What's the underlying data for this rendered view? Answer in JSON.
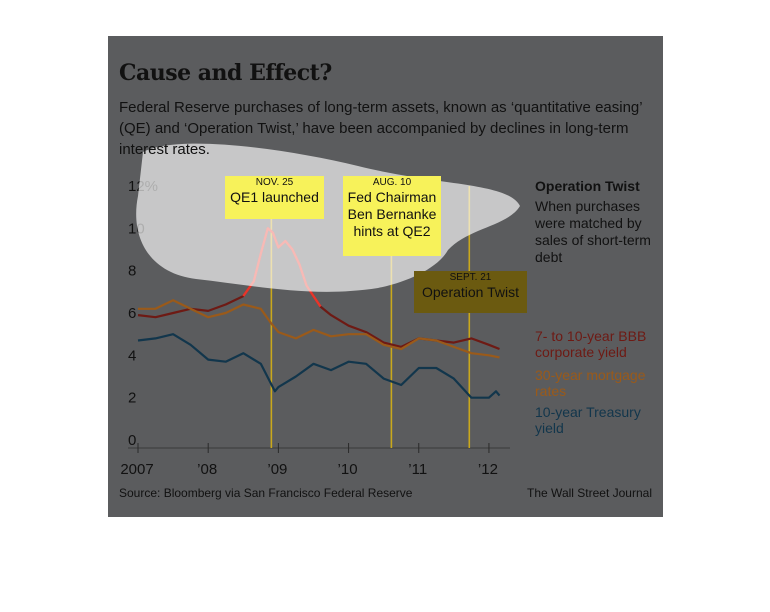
{
  "header": {
    "title": "Cause and Effect?",
    "subtitle": "Federal Reserve purchases of long-term assets, known as ‘quantitative easing’ (QE) and ‘Operation Twist,’ have been accompanied by declines in long-term interest rates."
  },
  "annotations": {
    "qe1": {
      "date": "NOV. 25",
      "text": "QE1 launched"
    },
    "qe2": {
      "date": "AUG. 10",
      "text": "Fed Chairman Ben Bernanke hints at QE2"
    },
    "twist": {
      "date": "SEPT. 21",
      "text": "Operation Twist"
    }
  },
  "side_note": {
    "heading": "Operation Twist",
    "body": "When purchases were matched by sales of short-term debt"
  },
  "footer": {
    "source": "Source: Bloomberg via San Francisco Federal Reserve",
    "credit": "The Wall Street Journal"
  },
  "colors": {
    "panel": "#5b5c5e",
    "bbb": "#6e1a14",
    "bbb_highlight": "#e8352a",
    "mortgage": "#9a5a1a",
    "treasury": "#12364c",
    "event_line": "#c9a81c",
    "annotation_box": "#f7f25a",
    "annotation_box_dark": "#6b5a10"
  },
  "chart_data": {
    "type": "line",
    "title": "Cause and Effect?",
    "ylim": [
      0,
      12
    ],
    "yticks": [
      "0",
      "2",
      "4",
      "6",
      "8",
      "10",
      "12%"
    ],
    "xlim": [
      2007.0,
      2012.3
    ],
    "xtick_values": [
      2007,
      2008,
      2009,
      2010,
      2011,
      2012
    ],
    "xtick_labels": [
      "2007",
      "’08",
      "’09",
      "’10",
      "’11",
      "’12"
    ],
    "events": [
      {
        "x": 2008.9,
        "label": "NOV. 25"
      },
      {
        "x": 2010.61,
        "label": "AUG. 10"
      },
      {
        "x": 2011.72,
        "label": "SEPT. 21"
      }
    ],
    "series": [
      {
        "name": "7- to 10-year BBB corporate yield",
        "color": "#6e1a14",
        "x": [
          2007.0,
          2007.25,
          2007.5,
          2007.75,
          2008.0,
          2008.25,
          2008.5,
          2008.65,
          2008.75,
          2008.85,
          2008.92,
          2009.0,
          2009.1,
          2009.2,
          2009.3,
          2009.4,
          2009.5,
          2009.6,
          2009.75,
          2010.0,
          2010.25,
          2010.5,
          2010.75,
          2011.0,
          2011.25,
          2011.5,
          2011.75,
          2012.0,
          2012.15
        ],
        "values": [
          5.9,
          5.8,
          6.0,
          6.2,
          6.1,
          6.4,
          6.8,
          7.5,
          8.8,
          10.0,
          9.8,
          9.1,
          9.4,
          9.0,
          8.3,
          7.3,
          6.8,
          6.3,
          5.9,
          5.4,
          5.1,
          4.6,
          4.4,
          4.8,
          4.7,
          4.6,
          4.8,
          4.5,
          4.3
        ],
        "highlight_range": [
          2008.5,
          2009.6
        ]
      },
      {
        "name": "30-year mortgage rates",
        "color": "#9a5a1a",
        "x": [
          2007.0,
          2007.25,
          2007.5,
          2007.75,
          2008.0,
          2008.25,
          2008.5,
          2008.75,
          2008.9,
          2009.0,
          2009.25,
          2009.5,
          2009.75,
          2010.0,
          2010.25,
          2010.5,
          2010.75,
          2011.0,
          2011.25,
          2011.5,
          2011.75,
          2012.0,
          2012.15
        ],
        "values": [
          6.2,
          6.2,
          6.6,
          6.2,
          5.8,
          6.0,
          6.4,
          6.2,
          5.5,
          5.1,
          4.8,
          5.2,
          4.9,
          5.0,
          5.0,
          4.5,
          4.3,
          4.8,
          4.7,
          4.4,
          4.1,
          4.0,
          3.9
        ]
      },
      {
        "name": "10-year Treasury yield",
        "color": "#12364c",
        "x": [
          2007.0,
          2007.25,
          2007.5,
          2007.75,
          2008.0,
          2008.25,
          2008.5,
          2008.75,
          2008.95,
          2009.0,
          2009.25,
          2009.5,
          2009.75,
          2010.0,
          2010.25,
          2010.5,
          2010.75,
          2011.0,
          2011.25,
          2011.5,
          2011.75,
          2012.0,
          2012.1,
          2012.15
        ],
        "values": [
          4.7,
          4.8,
          5.0,
          4.5,
          3.8,
          3.7,
          4.1,
          3.6,
          2.3,
          2.5,
          3.0,
          3.6,
          3.3,
          3.7,
          3.6,
          2.9,
          2.6,
          3.4,
          3.4,
          2.9,
          2.0,
          2.0,
          2.3,
          2.1
        ]
      }
    ]
  }
}
